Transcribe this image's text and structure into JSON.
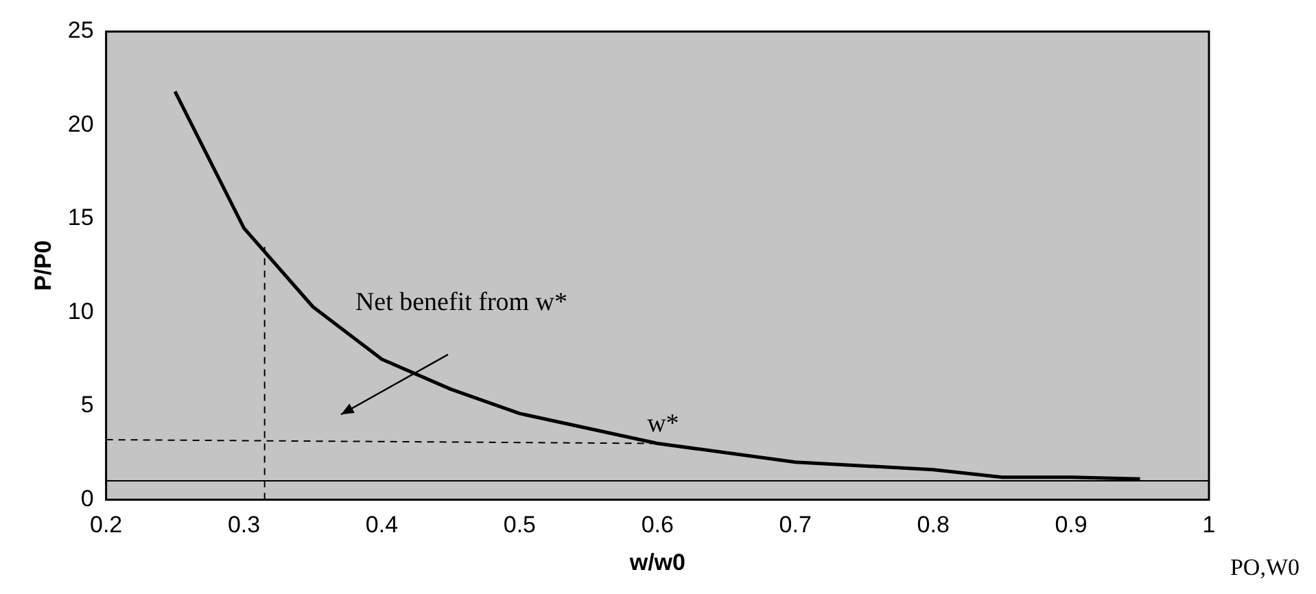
{
  "chart_data": {
    "type": "line",
    "xlabel": "w/w0",
    "ylabel": "P/P0",
    "xlim": [
      0.2,
      1
    ],
    "xticks": [
      0.2,
      0.3,
      0.4,
      0.5,
      0.6,
      0.7,
      0.8,
      0.9,
      1
    ],
    "ylim": [
      0,
      25
    ],
    "yticks": [
      0,
      5,
      10,
      15,
      20,
      25
    ],
    "grid": false,
    "legend": false,
    "marker": "none",
    "line_style": "solid",
    "series": [
      {
        "color": "#000000",
        "x": [
          0.25,
          0.3,
          0.35,
          0.4,
          0.45,
          0.5,
          0.6,
          0.7,
          0.8,
          0.85,
          0.9,
          0.95
        ],
        "values": [
          21.8,
          14.5,
          10.3,
          7.5,
          5.9,
          4.6,
          3.0,
          2.0,
          1.6,
          1.2,
          1.2,
          1.1
        ]
      },
      {
        "color": "#000000",
        "line_style": "dashed",
        "x": [
          0.315,
          0.315
        ],
        "values": [
          0,
          13.5
        ]
      },
      {
        "color": "#000000",
        "line_style": "dashed",
        "x": [
          0.2,
          0.6
        ],
        "values": [
          3.2,
          3.0
        ]
      }
    ],
    "ref_lines": [
      {
        "axis": "y",
        "value": 1,
        "color": "#000000"
      }
    ],
    "annotations": [
      "Net benefit from w*",
      "w*",
      "PO,W0"
    ]
  }
}
